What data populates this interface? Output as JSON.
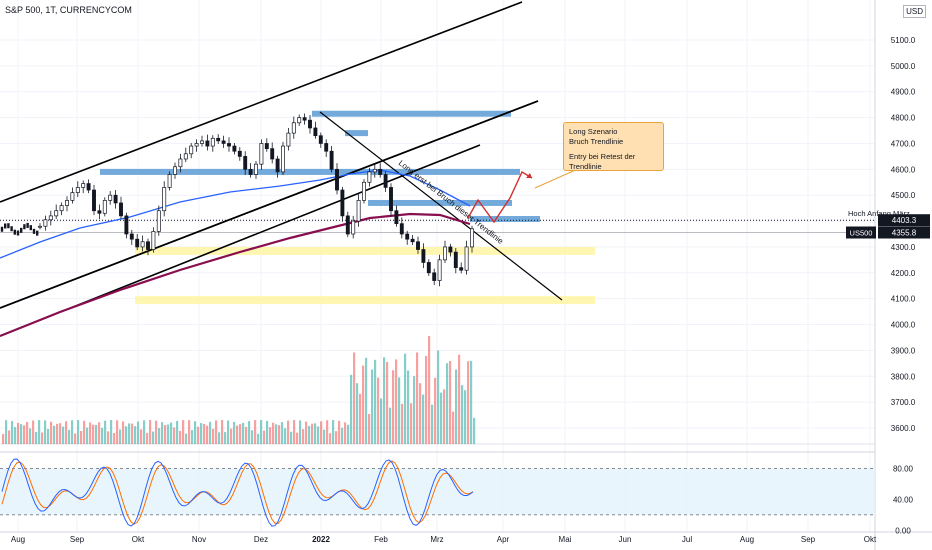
{
  "header": {
    "symbol_line": "S&P 500, 1T, CURRENCYCOM"
  },
  "currency_badge": "USD",
  "annotation_bubble": {
    "line1": "Long Szenario",
    "line2": "Bruch Trendlinie",
    "line3": "Entry bei Retest der Trendlinie"
  },
  "trendline_text": "Long erst bei Bruch dieser Trendlinie",
  "hline_label": "Hoch Anfang März",
  "colors": {
    "up": "#26a69a",
    "down": "#ef5350",
    "ema_short": "#2962ff",
    "ema_long": "#880e4f",
    "zone_blue": "#5b9bd5",
    "zone_yellow": "#fff59d",
    "osc_k": "#2962ff",
    "osc_d": "#ff6d00"
  },
  "chart_data": [
    {
      "type": "candlestick",
      "title": "S&P 500, 1T, CURRENCYCOM",
      "x_tick_labels": [
        "Aug",
        "Sep",
        "Okt",
        "Nov",
        "Dez",
        "2022",
        "Feb",
        "Mrz",
        "Apr",
        "Mai",
        "Jun",
        "Jul",
        "Aug",
        "Sep",
        "Okt"
      ],
      "y_tick_labels": [
        "5100.0",
        "5000.0",
        "4900.0",
        "4800.0",
        "4700.0",
        "4600.0",
        "4500.0",
        "4400.0",
        "4300.0",
        "4200.0",
        "4100.0",
        "4000.0",
        "3900.0",
        "3800.0",
        "3700.0",
        "3600.0"
      ],
      "ylim": [
        3550,
        5180
      ],
      "close_path": [
        4380,
        4405,
        4420,
        4440,
        4460,
        4480,
        4510,
        4530,
        4545,
        4520,
        4440,
        4430,
        4480,
        4500,
        4470,
        4420,
        4350,
        4330,
        4300,
        4320,
        4290,
        4360,
        4440,
        4530,
        4580,
        4610,
        4640,
        4660,
        4690,
        4700,
        4710,
        4690,
        4720,
        4710,
        4700,
        4690,
        4670,
        4650,
        4600,
        4580,
        4620,
        4700,
        4680,
        4640,
        4590,
        4690,
        4740,
        4780,
        4800,
        4790,
        4760,
        4730,
        4700,
        4670,
        4600,
        4520,
        4420,
        4350,
        4400,
        4480,
        4550,
        4590,
        4600,
        4580,
        4530,
        4440,
        4390,
        4350,
        4330,
        4320,
        4290,
        4240,
        4200,
        4170,
        4250,
        4300,
        4280,
        4220,
        4210,
        4300,
        4370
      ],
      "price_labels": [
        {
          "text": "4403.3",
          "value": 4403.3
        },
        {
          "text": "4355.8",
          "value": 4355.8
        }
      ],
      "symbol_tag": "US500",
      "hline_level": 4403.3,
      "support_zones": [
        [
          4270,
          4300
        ],
        [
          4090,
          4110
        ]
      ],
      "resistance_levels": [
        4815,
        4740,
        4590,
        4470,
        4408
      ]
    },
    {
      "type": "bar",
      "name": "volume"
    },
    {
      "type": "line",
      "name": "stochastic oscillator",
      "y_tick_labels": [
        "80.00",
        "40.00",
        "0.00"
      ],
      "ylim": [
        -10,
        100
      ],
      "band": [
        20,
        80
      ]
    }
  ]
}
